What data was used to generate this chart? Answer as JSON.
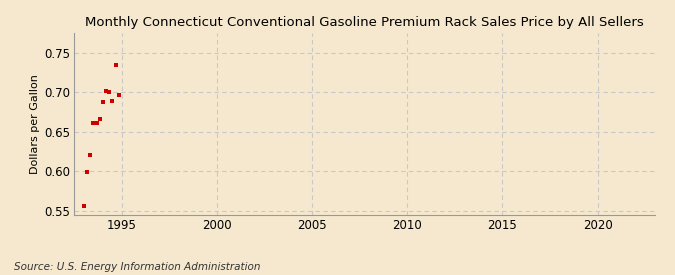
{
  "title": "Monthly Connecticut Conventional Gasoline Premium Rack Sales Price by All Sellers",
  "ylabel": "Dollars per Gallon",
  "source": "Source: U.S. Energy Information Administration",
  "background_color": "#f5e8ce",
  "grid_color": "#c8c8c8",
  "point_color": "#cc0000",
  "xlim": [
    1992.5,
    2023
  ],
  "ylim": [
    0.545,
    0.775
  ],
  "xticks": [
    1995,
    2000,
    2005,
    2010,
    2015,
    2020
  ],
  "yticks": [
    0.55,
    0.6,
    0.65,
    0.7,
    0.75
  ],
  "data_x": [
    1993.0,
    1993.17,
    1993.33,
    1993.5,
    1993.67,
    1993.83,
    1994.0,
    1994.17,
    1994.33,
    1994.5,
    1994.67,
    1994.83
  ],
  "data_y": [
    0.556,
    0.599,
    0.62,
    0.661,
    0.661,
    0.666,
    0.688,
    0.701,
    0.7,
    0.689,
    0.735,
    0.697
  ]
}
